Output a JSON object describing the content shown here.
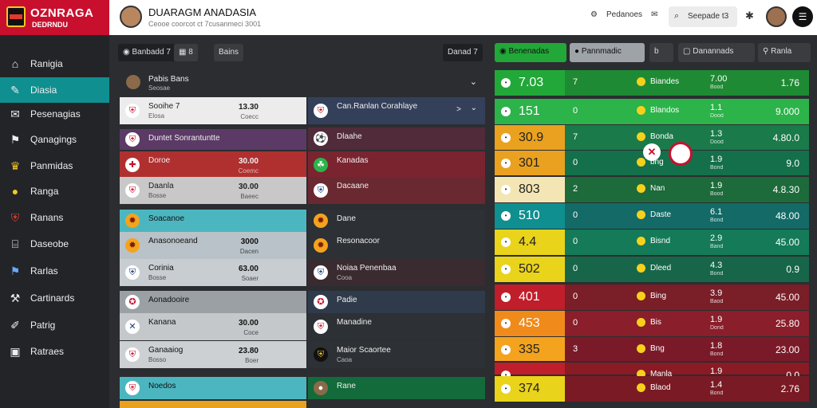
{
  "app": {
    "logo_title": "OZNRAGA",
    "logo_sub": "DEDRNDU",
    "title": "DUARAGM ANADASIA",
    "subtitle": "Ceooe coorcot ct 7cusanmeci 3001",
    "header_link_1": "Pedanoes",
    "header_link_2": "Seepade t3",
    "header_link_icon_1": "settings-icon",
    "header_link_icon_2": "chat-icon",
    "header_link_icon_3": "gear-icon",
    "menu_icon": "menu-icon"
  },
  "sidebar": {
    "items": [
      {
        "label": "Ranigia",
        "icon": "home-icon",
        "active": false
      },
      {
        "label": "Diasia",
        "icon": "edit-icon",
        "active": true
      },
      {
        "label": "Pesenagias",
        "icon": "mail-icon",
        "active": false
      },
      {
        "label": "Qanagings",
        "icon": "flag-icon",
        "active": false
      },
      {
        "label": "Panmidas",
        "icon": "crown-icon",
        "active": false
      },
      {
        "label": "Ranga",
        "icon": "coin-icon",
        "active": false
      },
      {
        "label": "Ranans",
        "icon": "shield-icon",
        "active": false
      },
      {
        "label": "Daseobe",
        "icon": "lock-icon",
        "active": false
      },
      {
        "label": "Rarlas",
        "icon": "flag-icon",
        "active": false
      },
      {
        "label": "Cartinards",
        "icon": "tools-icon",
        "active": false
      },
      {
        "label": "Patrig",
        "icon": "pen-icon",
        "active": false
      },
      {
        "label": "Ratraes",
        "icon": "car-icon",
        "active": false
      }
    ]
  },
  "toolbar": {
    "filter_label": "Banbadd 7",
    "icon_btn": "8",
    "btn_label": "Bains",
    "dropdown_label": "Danad 7",
    "tab_1": "Benenadas",
    "tab_2": "Pannmadic",
    "tab_3": "Danannads",
    "tab_4": "Ranla",
    "tab_toggle": "b"
  },
  "list_header": {
    "name": "Pabis Bans",
    "sub": "Seosae"
  },
  "left_list": [
    {
      "name": "Sooihe 7",
      "sub": "Elosa",
      "score": "13.30",
      "score_sub": "Coecc"
    },
    {
      "name": "Duntet Sonrantuntte",
      "sub": "",
      "score": "",
      "score_sub": ""
    },
    {
      "name": "Doroe",
      "sub": "",
      "score": "30.00",
      "score_sub": "Coemc"
    },
    {
      "name": "Daanla",
      "sub": "Bosse",
      "score": "30.00",
      "score_sub": "Baeec"
    },
    {
      "name": "Soacanoe",
      "sub": "",
      "score": "",
      "score_sub": ""
    },
    {
      "name": "Anasonoeand",
      "sub": "",
      "score": "3000",
      "score_sub": "Dacen"
    },
    {
      "name": "Corinia",
      "sub": "Bosse",
      "score": "63.00",
      "score_sub": "Soaer"
    },
    {
      "name": "Aonadooire",
      "sub": "",
      "score": "",
      "score_sub": ""
    },
    {
      "name": "Kanana",
      "sub": "",
      "score": "30.00",
      "score_sub": "Coce"
    },
    {
      "name": "Ganaaiog",
      "sub": "Bosso",
      "score": "23.80",
      "score_sub": "Boer"
    },
    {
      "name": "Noedos",
      "sub": "",
      "score": "",
      "score_sub": ""
    }
  ],
  "right_list": [
    {
      "name": "Can.Ranlan Corahlaye",
      "arrow": ">"
    },
    {
      "name": "Dlaahe"
    },
    {
      "name": "Kanadas"
    },
    {
      "name": "Dacaane"
    },
    {
      "name": "Dane"
    },
    {
      "name": "Resonacoor"
    },
    {
      "name": "Noiaa Penenbaa",
      "sub": "Cooa"
    },
    {
      "name": "Padie"
    },
    {
      "name": "Manadine"
    },
    {
      "name": "Maior Scaortee",
      "sub": "Caoa"
    },
    {
      "name": "Rane"
    }
  ],
  "odds": [
    {
      "val": "7.03",
      "mini": "7",
      "team": "Biandes",
      "n1": "7.00",
      "n1s": "Bood",
      "n2": "1.76",
      "color": "#22a838"
    },
    {
      "val": "151",
      "mini": "0",
      "team": "Blandos",
      "n1": "1.1",
      "n1s": "Dood",
      "n2": "9.000",
      "color": "#2cb34a"
    },
    {
      "val": "30.9",
      "mini": "7",
      "team": "Bonda",
      "n1": "1.3",
      "n1s": "Dood",
      "n2": "4.80.0",
      "color": "#e9a11f"
    },
    {
      "val": "301",
      "mini": "0",
      "team": "bng",
      "n1": "1.9",
      "n1s": "Bond",
      "n2": "9.0",
      "color": "#e9a11f"
    },
    {
      "val": "803",
      "mini": "2",
      "team": "Nan",
      "n1": "1.9",
      "n1s": "Bood",
      "n2": "4.8.30",
      "color": "#f4e6b4"
    },
    {
      "val": "510",
      "mini": "0",
      "team": "Daste",
      "n1": "6.1",
      "n1s": "Bond",
      "n2": "48.00",
      "color": "#0f8f8f"
    },
    {
      "val": "4.4",
      "mini": "0",
      "team": "Bisnd",
      "n1": "2.9",
      "n1s": "Band",
      "n2": "45.00",
      "color": "#e9d31b"
    },
    {
      "val": "502",
      "mini": "0",
      "team": "Dleed",
      "n1": "4.3",
      "n1s": "Bond",
      "n2": "0.9",
      "color": "#e9d31b"
    },
    {
      "val": "401",
      "mini": "0",
      "team": "Bing",
      "n1": "3.9",
      "n1s": "Baod",
      "n2": "45.00",
      "color": "#c01e2a"
    },
    {
      "val": "453",
      "mini": "0",
      "team": "Bis",
      "n1": "1.9",
      "n1s": "Dond",
      "n2": "25.80",
      "color": "#f08a1a"
    },
    {
      "val": "335",
      "mini": "3",
      "team": "Bng",
      "n1": "1.8",
      "n1s": "Bond",
      "n2": "23.00",
      "color": "#f3a31d"
    },
    {
      "val": "",
      "mini": "",
      "team": "Manla",
      "n1": "1.9",
      "n1s": "",
      "n2": "0.0",
      "color": "#c01e2a"
    },
    {
      "val": "374",
      "mini": "",
      "team": "Blaod",
      "n1": "1.4",
      "n1s": "Bond",
      "n2": "2.76",
      "color": "#e9d31b"
    }
  ],
  "colors": {
    "accent": "#0f8f8f",
    "brand": "#c8102e",
    "green": "#22a838"
  }
}
